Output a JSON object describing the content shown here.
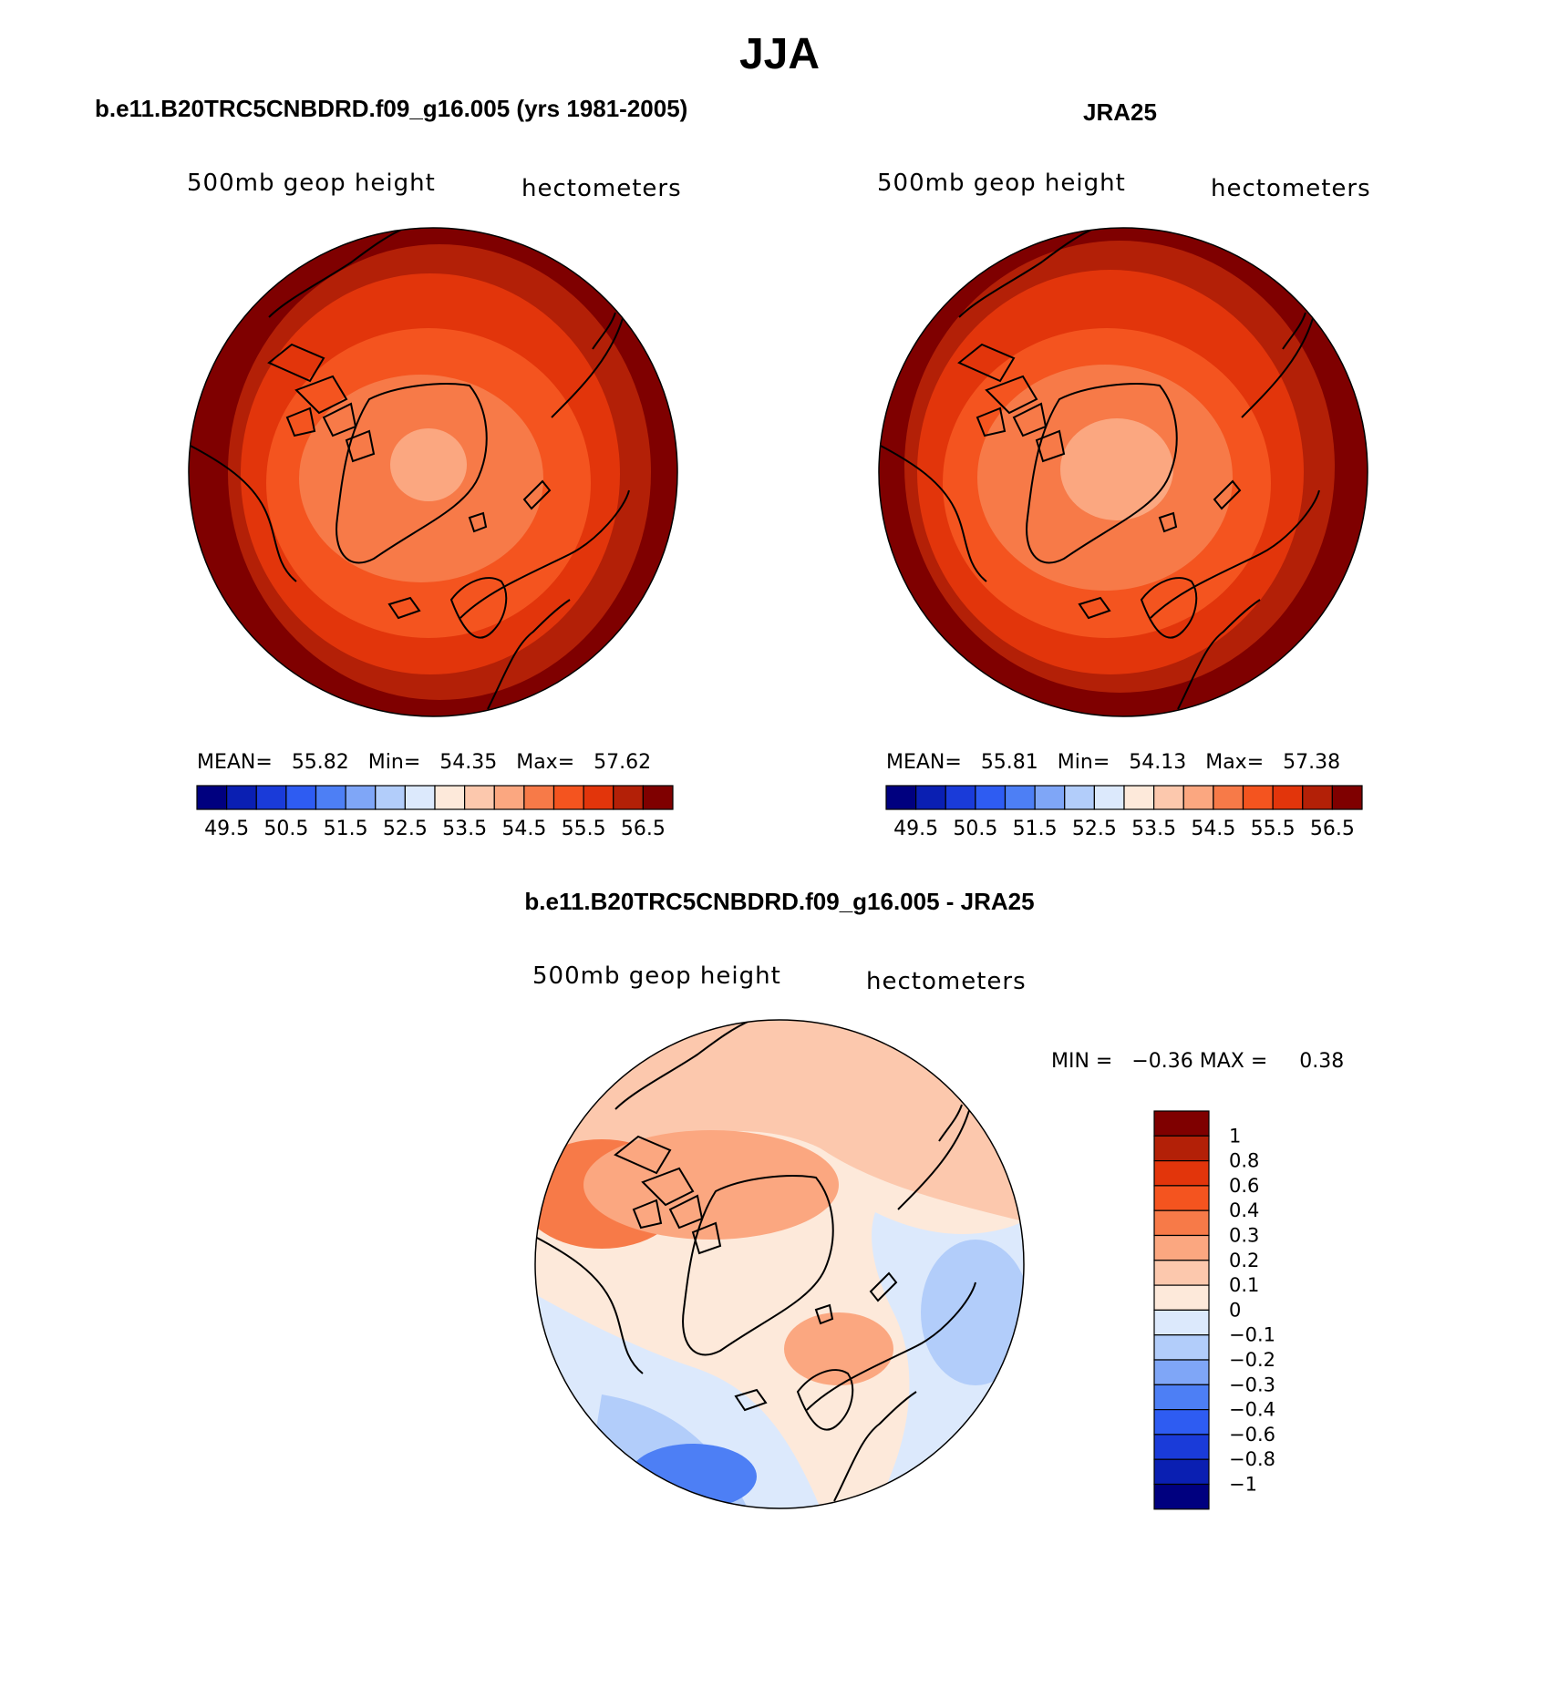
{
  "figure": {
    "title": "JJA"
  },
  "panels": [
    {
      "title": "b.e11.B20TRC5CNBDRD.f09_g16.005 (yrs 1981-2005)",
      "variable": "500mb geop height",
      "units": "hectometers",
      "stats": {
        "mean_label": "MEAN=",
        "mean": "55.82",
        "min_label": "Min=",
        "min": "54.35",
        "max_label": "Max=",
        "max": "57.62"
      },
      "levels": [
        49.5,
        50,
        50.5,
        51,
        51.5,
        52,
        52.5,
        53,
        53.5,
        54,
        54.5,
        55,
        55.5,
        56,
        56.5
      ],
      "tick_labels": [
        "49.5",
        "50.5",
        "51.5",
        "52.5",
        "53.5",
        "54.5",
        "55.5",
        "56.5"
      ]
    },
    {
      "title": "JRA25",
      "variable": "500mb geop height",
      "units": "hectometers",
      "stats": {
        "mean_label": "MEAN=",
        "mean": "55.81",
        "min_label": "Min=",
        "min": "54.13",
        "max_label": "Max=",
        "max": "57.38"
      },
      "levels": [
        49.5,
        50,
        50.5,
        51,
        51.5,
        52,
        52.5,
        53,
        53.5,
        54,
        54.5,
        55,
        55.5,
        56,
        56.5
      ],
      "tick_labels": [
        "49.5",
        "50.5",
        "51.5",
        "52.5",
        "53.5",
        "54.5",
        "55.5",
        "56.5"
      ]
    },
    {
      "title": "b.e11.B20TRC5CNBDRD.f09_g16.005 - JRA25",
      "variable": "500mb geop height",
      "units": "hectometers",
      "stats": {
        "min_label": "MIN =",
        "min": "−0.36",
        "max_label": "MAX =",
        "max": "0.38"
      },
      "levels": [
        -1,
        -0.8,
        -0.6,
        -0.4,
        -0.3,
        -0.2,
        -0.1,
        0,
        0.1,
        0.2,
        0.3,
        0.4,
        0.6,
        0.8,
        1
      ],
      "tick_labels": [
        "1",
        "0.8",
        "0.6",
        "0.4",
        "0.3",
        "0.2",
        "0.1",
        "0",
        "−0.1",
        "−0.2",
        "−0.3",
        "−0.4",
        "−0.6",
        "−0.8",
        "−1"
      ]
    }
  ],
  "colors": {
    "palette": [
      "#00007f",
      "#0a1fb2",
      "#1a3bd9",
      "#2e5cf2",
      "#4d7ff5",
      "#7fa6f7",
      "#b2cdfa",
      "#dce9fc",
      "#fde9da",
      "#fcc8ad",
      "#fba780",
      "#f77a48",
      "#f4541f",
      "#e2350b",
      "#b32007",
      "#7f0000"
    ]
  },
  "chart_data": [
    {
      "type": "heatmap",
      "title": "b.e11.B20TRC5CNBDRD.f09_g16.005 (yrs 1981-2005)",
      "variable": "500mb geop height",
      "units": "hectometers",
      "projection": "north polar stereographic",
      "mean": 55.82,
      "min": 54.35,
      "max": 57.62,
      "colorbar_levels": [
        49.5,
        50,
        50.5,
        51,
        51.5,
        52,
        52.5,
        53,
        53.5,
        54,
        54.5,
        55,
        55.5,
        56,
        56.5
      ]
    },
    {
      "type": "heatmap",
      "title": "JRA25",
      "variable": "500mb geop height",
      "units": "hectometers",
      "projection": "north polar stereographic",
      "mean": 55.81,
      "min": 54.13,
      "max": 57.38,
      "colorbar_levels": [
        49.5,
        50,
        50.5,
        51,
        51.5,
        52,
        52.5,
        53,
        53.5,
        54,
        54.5,
        55,
        55.5,
        56,
        56.5
      ]
    },
    {
      "type": "heatmap",
      "title": "b.e11.B20TRC5CNBDRD.f09_g16.005 - JRA25",
      "variable": "500mb geop height",
      "units": "hectometers",
      "projection": "north polar stereographic",
      "min": -0.36,
      "max": 0.38,
      "colorbar_levels": [
        -1,
        -0.8,
        -0.6,
        -0.4,
        -0.3,
        -0.2,
        -0.1,
        0,
        0.1,
        0.2,
        0.3,
        0.4,
        0.6,
        0.8,
        1
      ]
    }
  ]
}
